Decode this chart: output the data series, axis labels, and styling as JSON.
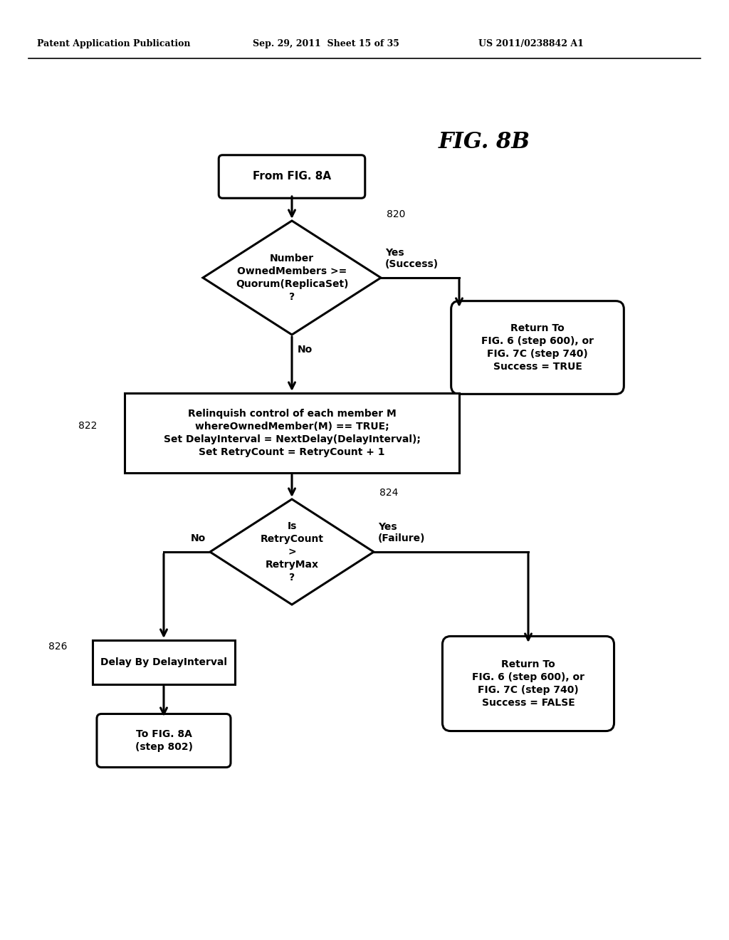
{
  "bg_color": "#ffffff",
  "header_left": "Patent Application Publication",
  "header_mid": "Sep. 29, 2011  Sheet 15 of 35",
  "header_right": "US 2011/0238842 A1",
  "fig_label": "FIG. 8B",
  "start_label": "From FIG. 8A",
  "d1_label": "Number\nOwnedMembers >=\nQuorum(ReplicaSet)\n?",
  "d1_step": "820",
  "yes_success": "Yes\n(Success)",
  "return_true_label": "Return To\nFIG. 6 (step 600), or\nFIG. 7C (step 740)\nSuccess = TRUE",
  "no1_label": "No",
  "process_step": "822",
  "process_label": "Relinquish control of each member M\nwhereOwnedMember(M) == TRUE;\nSet DelayInterval = NextDelay(DelayInterval);\nSet RetryCount = RetryCount + 1",
  "d2_step": "824",
  "d2_label": "Is\nRetryCount\n>\nRetryMax\n?",
  "no2_label": "No",
  "yes_failure": "Yes\n(Failure)",
  "delay_step": "826",
  "delay_label": "Delay By DelayInterval",
  "end_label": "To FIG. 8A\n(step 802)",
  "return_false_label": "Return To\nFIG. 6 (step 600), or\nFIG. 7C (step 740)\nSuccess = FALSE"
}
